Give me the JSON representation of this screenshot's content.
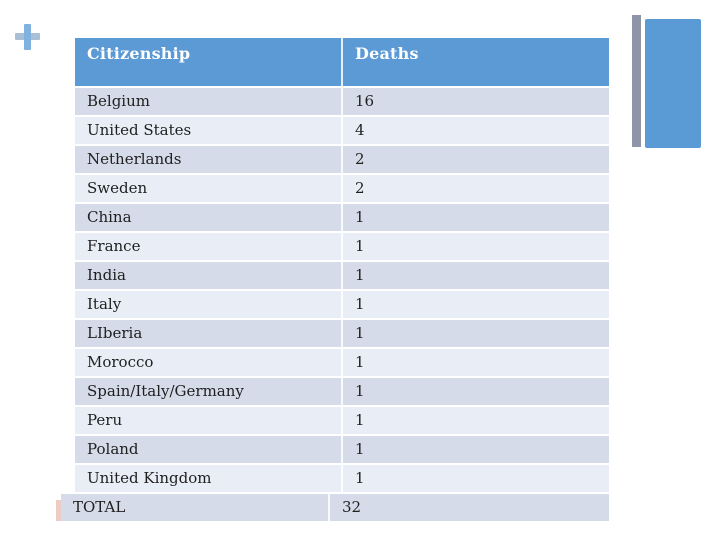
{
  "table": {
    "columns": [
      "Citizenship",
      "Deaths"
    ],
    "rows": [
      {
        "citizenship": "Belgium",
        "deaths": "16"
      },
      {
        "citizenship": "United States",
        "deaths": "4"
      },
      {
        "citizenship": "Netherlands",
        "deaths": "2"
      },
      {
        "citizenship": "Sweden",
        "deaths": "2"
      },
      {
        "citizenship": "China",
        "deaths": "1"
      },
      {
        "citizenship": "France",
        "deaths": "1"
      },
      {
        "citizenship": "India",
        "deaths": "1"
      },
      {
        "citizenship": "Italy",
        "deaths": "1"
      },
      {
        "citizenship": "LIberia",
        "deaths": "1"
      },
      {
        "citizenship": "Morocco",
        "deaths": "1"
      },
      {
        "citizenship": "Spain/Italy/Germany",
        "deaths": "1"
      },
      {
        "citizenship": "Peru",
        "deaths": "1"
      },
      {
        "citizenship": "Poland",
        "deaths": "1"
      },
      {
        "citizenship": "United Kingdom",
        "deaths": "1"
      }
    ],
    "total": {
      "label": "TOTAL",
      "value": "32"
    }
  },
  "chart_data": {
    "type": "table",
    "title": "",
    "categories": [
      "Belgium",
      "United States",
      "Netherlands",
      "Sweden",
      "China",
      "France",
      "India",
      "Italy",
      "LIberia",
      "Morocco",
      "Spain/Italy/Germany",
      "Peru",
      "Poland",
      "United Kingdom"
    ],
    "values": [
      16,
      4,
      2,
      2,
      1,
      1,
      1,
      1,
      1,
      1,
      1,
      1,
      1,
      1
    ],
    "total": 32
  },
  "icons": {
    "plus_icon": "+"
  },
  "colors": {
    "header_bg": "#5b9ad5",
    "header_text": "#ffffff",
    "row_dark": "#d5dbe8",
    "row_light": "#e9eef6",
    "body_text": "#1f1f1f",
    "accent_bar_blue": "#5b9bd5",
    "accent_bar_gray": "#8d95a7",
    "plus_vertical": "#7fb2de",
    "plus_horizontal": "#a9bfd6",
    "pink_sliver": "#edccc4"
  }
}
